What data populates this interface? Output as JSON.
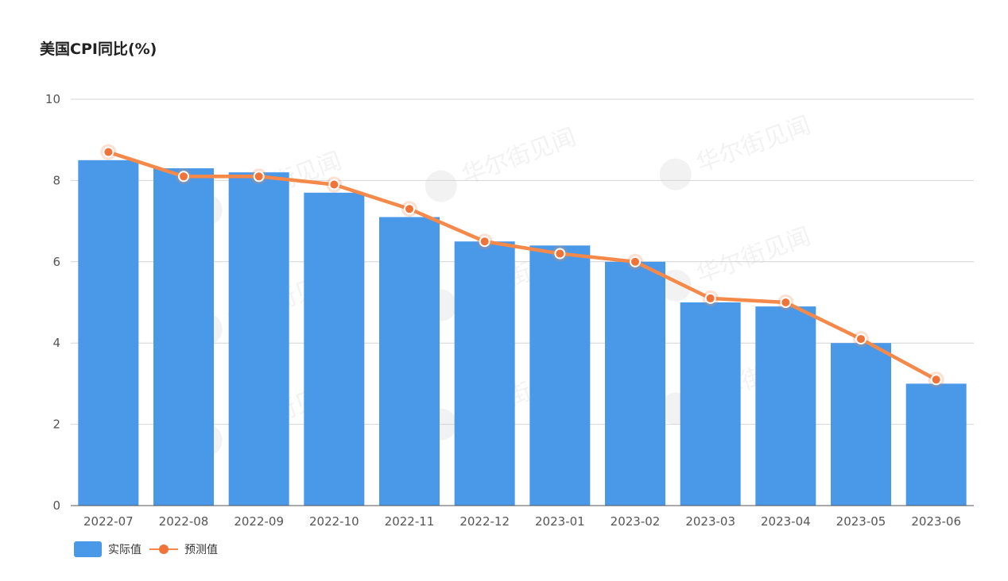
{
  "chart_data": {
    "type": "bar",
    "title": "美国CPI同比(%)",
    "categories": [
      "2022-07",
      "2022-08",
      "2022-09",
      "2022-10",
      "2022-11",
      "2022-12",
      "2023-01",
      "2023-02",
      "2023-03",
      "2023-04",
      "2023-05",
      "2023-06"
    ],
    "series": [
      {
        "name": "实际值",
        "type": "bar",
        "color": "#4a98e8",
        "values": [
          8.5,
          8.3,
          8.2,
          7.7,
          7.1,
          6.5,
          6.4,
          6.0,
          5.0,
          4.9,
          4.0,
          3.0
        ]
      },
      {
        "name": "预测值",
        "type": "line",
        "color": "#f5894a",
        "values": [
          8.7,
          8.1,
          8.1,
          7.9,
          7.3,
          6.5,
          6.2,
          6.0,
          5.1,
          5.0,
          4.1,
          3.1
        ]
      }
    ],
    "ylim": [
      0,
      10
    ],
    "yticks": [
      0,
      2,
      4,
      6,
      8,
      10
    ],
    "grid": true,
    "legend_position": "bottom-left"
  },
  "watermark": "华尔街见闻"
}
